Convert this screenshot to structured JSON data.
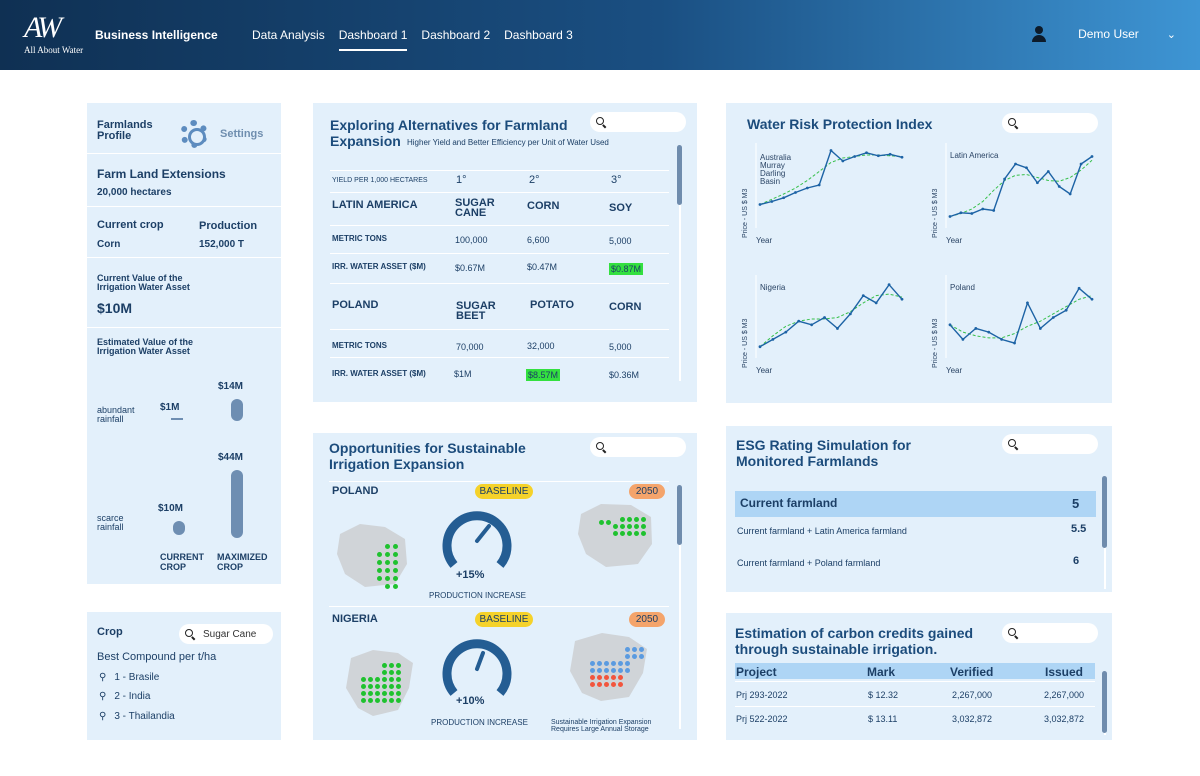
{
  "header": {
    "logo_mark": "AW",
    "logo_tag": "All About Water",
    "brand": "Business Intelligence",
    "nav": [
      "Data Analysis",
      "Dashboard 1",
      "Dashboard 2",
      "Dashboard 3"
    ],
    "active_nav": "Dashboard 1",
    "user": "Demo User"
  },
  "farmlands": {
    "title": "Farmlands Profile",
    "settings": "Settings",
    "ext_label": "Farm Land Extensions",
    "ext_value": "20,000 hectares",
    "crop_label": "Current crop",
    "crop_value": "Corn",
    "prod_label": "Production",
    "prod_value": "152,000 T",
    "cur_value_label": "Current Value of the Irrigation Water Asset",
    "cur_value": "$10M",
    "est_label": "Estimated Value of the Irrigation Water Asset",
    "abundant": "abundant rainfall",
    "scarce": "scarce rainfall",
    "v_ab_cur": "$1M",
    "v_ab_max": "$14M",
    "v_sc_cur": "$10M",
    "v_sc_max": "$44M",
    "col_current": "CURRENT CROP",
    "col_max": "MAXIMIZED CROP"
  },
  "crop_panel": {
    "title": "Crop",
    "search_value": "Sugar Cane",
    "subtitle": "Best Compound per t/ha",
    "items": [
      "1 - Brasile",
      "2 - India",
      "3 - Thailandia"
    ]
  },
  "alternatives": {
    "title": "Exploring Alternatives for Farmland Expansion",
    "subtitle": "Higher Yield and Better Efficiency per Unit of Water Used",
    "yield_label": "YIELD PER 1,000 HECTARES",
    "ranks": [
      "1°",
      "2°",
      "3°"
    ],
    "sections": [
      {
        "region": "LATIN AMERICA",
        "crops": [
          "SUGAR CANE",
          "CORN",
          "SOY"
        ],
        "metric_label": "METRIC TONS",
        "metric": [
          "100,000",
          "6,600",
          "5,000"
        ],
        "asset_label": "IRR. WATER ASSET ($M)",
        "asset": [
          "$0.67M",
          "$0.47M",
          "$0.87M"
        ],
        "highlight": 2
      },
      {
        "region": "POLAND",
        "crops": [
          "SUGAR BEET",
          "POTATO",
          "CORN"
        ],
        "metric_label": "METRIC TONS",
        "metric": [
          "70,000",
          "32,000",
          "5,000"
        ],
        "asset_label": "IRR. WATER ASSET ($M)",
        "asset": [
          "$1M",
          "$8.57M",
          "$0.36M"
        ],
        "highlight": 1
      }
    ]
  },
  "opportunities": {
    "title": "Opportunities for Sustainable Irrigation Expansion",
    "baseline": "BASELINE",
    "year": "2050",
    "poland": {
      "name": "POLAND",
      "pct": "+15%",
      "caption": "PRODUCTION INCREASE"
    },
    "nigeria": {
      "name": "NIGERIA",
      "pct": "+10%",
      "caption": "PRODUCTION INCREASE",
      "note": "Sustainable Irrigation Expansion Requires Large Annual Storage"
    },
    "colors": {
      "green": "#1fc22f",
      "blue": "#5b9be0",
      "red": "#f2553d",
      "baseline": "#f5d22a",
      "year": "#f4a46b"
    }
  },
  "wrpi": {
    "title": "Water Risk Protection Index",
    "ylabel": "Price - US $ M3",
    "xlabel": "Year",
    "charts": [
      {
        "name": "Australia Murray Darling Basin",
        "values": [
          0.26,
          0.3,
          0.35,
          0.42,
          0.48,
          0.52,
          0.98,
          0.84,
          0.9,
          0.95,
          0.91,
          0.93,
          0.89
        ],
        "trend": [
          0.26,
          0.33,
          0.4,
          0.48,
          0.58,
          0.7,
          0.82,
          0.88,
          0.9,
          0.92,
          0.92,
          0.91,
          0.9
        ]
      },
      {
        "name": "Latin America",
        "values": [
          0.1,
          0.15,
          0.14,
          0.2,
          0.18,
          0.6,
          0.8,
          0.75,
          0.55,
          0.7,
          0.5,
          0.4,
          0.8,
          0.9
        ],
        "trend": [
          0.1,
          0.14,
          0.2,
          0.3,
          0.45,
          0.58,
          0.65,
          0.66,
          0.62,
          0.58,
          0.57,
          0.62,
          0.72,
          0.85
        ]
      },
      {
        "name": "Nigeria",
        "values": [
          0.1,
          0.2,
          0.3,
          0.45,
          0.4,
          0.5,
          0.35,
          0.55,
          0.8,
          0.7,
          0.95,
          0.75
        ],
        "trend": [
          0.1,
          0.25,
          0.38,
          0.45,
          0.48,
          0.48,
          0.5,
          0.58,
          0.7,
          0.8,
          0.82,
          0.78
        ]
      },
      {
        "name": "Poland",
        "values": [
          0.4,
          0.2,
          0.35,
          0.3,
          0.2,
          0.15,
          0.7,
          0.35,
          0.5,
          0.6,
          0.9,
          0.75
        ],
        "trend": [
          0.4,
          0.3,
          0.25,
          0.22,
          0.22,
          0.28,
          0.38,
          0.45,
          0.55,
          0.65,
          0.75,
          0.8
        ]
      }
    ]
  },
  "esg": {
    "title": "ESG Rating Simulation for Monitored Farmlands",
    "rows": [
      {
        "label": "Current farmland",
        "score": "5"
      },
      {
        "label": "Current farmland + Latin America farmland",
        "score": "5.5"
      },
      {
        "label": "Current farmland + Poland farmland",
        "score": "6"
      }
    ]
  },
  "carbon": {
    "title": "Estimation of carbon credits gained through sustainable irrigation.",
    "columns": [
      "Project",
      "Mark",
      "Verified",
      "Issued"
    ],
    "rows": [
      [
        "Prj 293-2022",
        "$ 12.32",
        "2,267,000",
        "2,267,000"
      ],
      [
        "Prj 522-2022",
        "$ 13.11",
        "3,032,872",
        "3,032,872"
      ]
    ]
  }
}
